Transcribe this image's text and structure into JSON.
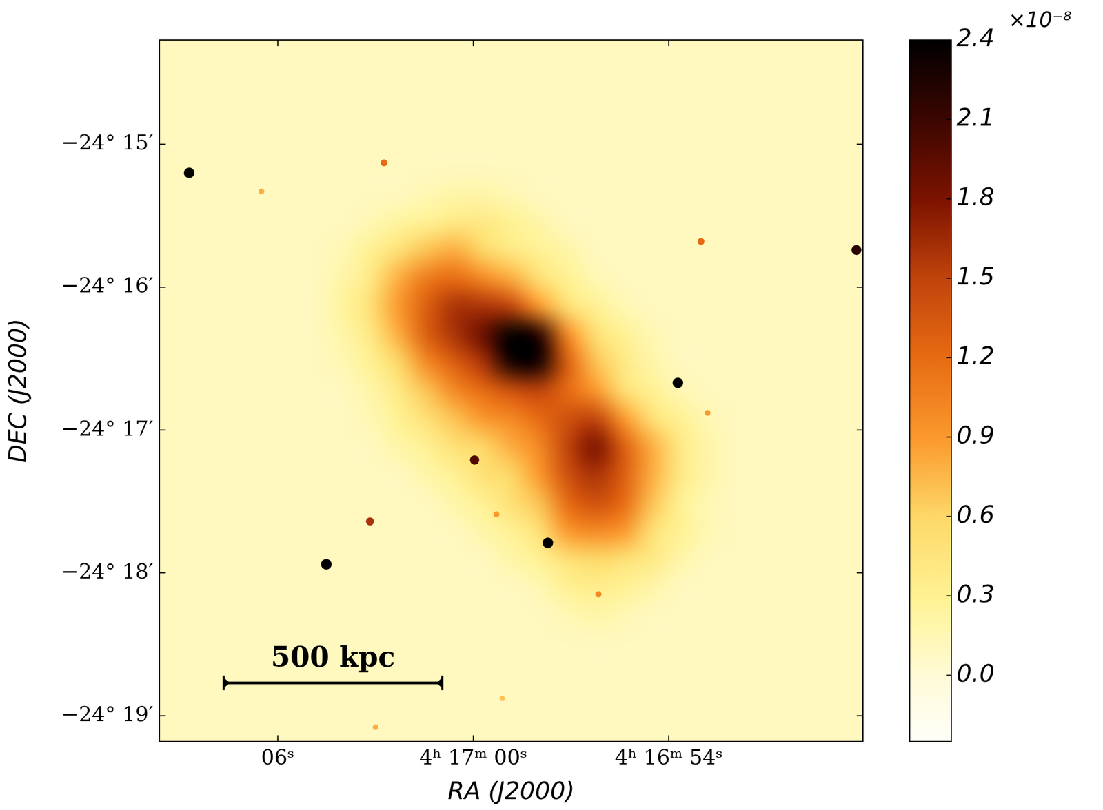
{
  "chart_data": {
    "type": "heatmap",
    "x_label": "RA (J2000)",
    "y_label": "DEC (J2000)",
    "xlim": [
      69.63,
      48.04
    ],
    "ylim": [
      -19.18,
      -14.27
    ],
    "xticks": [
      {
        "value": 66,
        "label": "06ˢ"
      },
      {
        "value": 60,
        "label": "4ʰ 17ᵐ 00ˢ"
      },
      {
        "value": 54,
        "label": "4ʰ 16ᵐ 54ˢ"
      }
    ],
    "yticks": [
      {
        "value": -15,
        "label": "−24° 15′"
      },
      {
        "value": -16,
        "label": "−24° 16′"
      },
      {
        "value": -17,
        "label": "−24° 17′"
      },
      {
        "value": -18,
        "label": "−24° 18′"
      },
      {
        "value": -19,
        "label": "−24° 19′"
      }
    ],
    "grid": false,
    "cells": [
      [
        0.1,
        0.1,
        0.1,
        0.1,
        0.1,
        0.1,
        0.1,
        0.1,
        0.1,
        0.1,
        0.1,
        0.1,
        0.1,
        0.1,
        0.1,
        0.1,
        0.1,
        0.1,
        0.1,
        0.1,
        0.1,
        0.1,
        0.1,
        0.1,
        0.1
      ],
      [
        0.1,
        0.1,
        0.1,
        0.1,
        0.1,
        0.1,
        0.1,
        0.1,
        0.1,
        0.1,
        0.1,
        0.1,
        0.1,
        0.1,
        0.1,
        0.1,
        0.1,
        0.1,
        0.1,
        0.1,
        0.1,
        0.1,
        0.1,
        0.1,
        0.1
      ],
      [
        0.1,
        0.1,
        0.1,
        0.1,
        0.1,
        0.1,
        0.1,
        0.1,
        0.1,
        0.1,
        0.1,
        0.1,
        0.1,
        0.1,
        0.1,
        0.1,
        0.1,
        0.1,
        0.1,
        0.1,
        0.1,
        0.1,
        0.1,
        0.1,
        0.1
      ],
      [
        0.1,
        0.1,
        0.1,
        0.1,
        0.1,
        0.1,
        0.1,
        0.1,
        0.1,
        0.1,
        0.1,
        0.1,
        0.1,
        0.1,
        0.1,
        0.1,
        0.1,
        0.1,
        0.1,
        0.1,
        0.1,
        0.1,
        0.1,
        0.1,
        0.1
      ],
      [
        0.1,
        0.1,
        0.1,
        0.1,
        0.1,
        0.1,
        0.1,
        0.1,
        0.1,
        0.1,
        0.1,
        0.1,
        0.1,
        0.1,
        0.1,
        0.1,
        0.1,
        0.1,
        0.1,
        0.1,
        0.1,
        0.1,
        0.1,
        0.1,
        0.1
      ],
      [
        0.1,
        0.1,
        0.1,
        0.1,
        0.1,
        0.1,
        0.1,
        0.1,
        0.1,
        0.15,
        0.2,
        0.2,
        0.15,
        0.1,
        0.1,
        0.1,
        0.1,
        0.1,
        0.1,
        0.1,
        0.1,
        0.1,
        0.1,
        0.1,
        0.1
      ],
      [
        0.1,
        0.1,
        0.1,
        0.1,
        0.1,
        0.1,
        0.1,
        0.15,
        0.25,
        0.3,
        0.4,
        0.4,
        0.3,
        0.2,
        0.1,
        0.1,
        0.1,
        0.1,
        0.1,
        0.1,
        0.1,
        0.1,
        0.1,
        0.1,
        0.1
      ],
      [
        0.1,
        0.1,
        0.1,
        0.1,
        0.1,
        0.1,
        0.15,
        0.3,
        0.5,
        0.7,
        0.8,
        0.6,
        0.4,
        0.3,
        0.2,
        0.1,
        0.1,
        0.1,
        0.1,
        0.1,
        0.1,
        0.1,
        0.1,
        0.1,
        0.1
      ],
      [
        0.1,
        0.1,
        0.1,
        0.1,
        0.1,
        0.1,
        0.2,
        0.4,
        0.8,
        1.1,
        1.2,
        1.0,
        0.8,
        0.5,
        0.3,
        0.15,
        0.1,
        0.1,
        0.1,
        0.1,
        0.1,
        0.1,
        0.1,
        0.1,
        0.1
      ],
      [
        0.1,
        0.1,
        0.1,
        0.1,
        0.1,
        0.1,
        0.25,
        0.5,
        0.9,
        1.3,
        1.6,
        1.6,
        1.5,
        0.9,
        0.5,
        0.3,
        0.15,
        0.1,
        0.1,
        0.1,
        0.1,
        0.1,
        0.1,
        0.1,
        0.1
      ],
      [
        0.1,
        0.1,
        0.1,
        0.1,
        0.1,
        0.1,
        0.2,
        0.4,
        0.8,
        1.3,
        1.6,
        1.9,
        2.4,
        2.2,
        1.0,
        0.5,
        0.3,
        0.15,
        0.1,
        0.1,
        0.1,
        0.1,
        0.1,
        0.1,
        0.1
      ],
      [
        0.1,
        0.1,
        0.1,
        0.1,
        0.1,
        0.1,
        0.15,
        0.3,
        0.6,
        1.0,
        1.3,
        1.6,
        2.3,
        2.3,
        1.3,
        0.7,
        0.4,
        0.2,
        0.1,
        0.1,
        0.1,
        0.1,
        0.1,
        0.1,
        0.1
      ],
      [
        0.1,
        0.1,
        0.1,
        0.1,
        0.1,
        0.1,
        0.1,
        0.2,
        0.4,
        0.7,
        1.0,
        1.2,
        1.4,
        1.5,
        1.2,
        0.9,
        0.5,
        0.3,
        0.15,
        0.1,
        0.1,
        0.1,
        0.1,
        0.1,
        0.1
      ],
      [
        0.1,
        0.1,
        0.1,
        0.1,
        0.1,
        0.1,
        0.1,
        0.15,
        0.3,
        0.5,
        0.7,
        0.9,
        1.0,
        1.2,
        1.4,
        1.5,
        0.9,
        0.5,
        0.3,
        0.15,
        0.1,
        0.1,
        0.1,
        0.1,
        0.1
      ],
      [
        0.1,
        0.1,
        0.1,
        0.1,
        0.1,
        0.1,
        0.1,
        0.1,
        0.2,
        0.3,
        0.5,
        0.6,
        0.8,
        1.0,
        1.5,
        1.8,
        1.3,
        0.8,
        0.4,
        0.2,
        0.1,
        0.1,
        0.1,
        0.1,
        0.1
      ],
      [
        0.1,
        0.1,
        0.1,
        0.1,
        0.1,
        0.1,
        0.1,
        0.1,
        0.1,
        0.2,
        0.3,
        0.5,
        0.6,
        0.9,
        1.4,
        1.6,
        1.3,
        0.8,
        0.4,
        0.2,
        0.1,
        0.1,
        0.1,
        0.1,
        0.1
      ],
      [
        0.1,
        0.1,
        0.1,
        0.1,
        0.1,
        0.1,
        0.1,
        0.1,
        0.1,
        0.1,
        0.2,
        0.3,
        0.5,
        0.7,
        1.2,
        1.4,
        1.2,
        0.7,
        0.3,
        0.15,
        0.1,
        0.1,
        0.1,
        0.1,
        0.1
      ],
      [
        0.1,
        0.1,
        0.1,
        0.1,
        0.1,
        0.1,
        0.1,
        0.1,
        0.1,
        0.1,
        0.1,
        0.2,
        0.3,
        0.5,
        0.9,
        1.0,
        0.9,
        0.5,
        0.3,
        0.15,
        0.1,
        0.1,
        0.1,
        0.1,
        0.1
      ],
      [
        0.1,
        0.1,
        0.1,
        0.1,
        0.1,
        0.1,
        0.1,
        0.1,
        0.1,
        0.1,
        0.1,
        0.1,
        0.2,
        0.3,
        0.5,
        0.6,
        0.5,
        0.4,
        0.2,
        0.1,
        0.1,
        0.1,
        0.1,
        0.1,
        0.1
      ],
      [
        0.1,
        0.1,
        0.1,
        0.1,
        0.1,
        0.1,
        0.1,
        0.1,
        0.1,
        0.1,
        0.1,
        0.1,
        0.1,
        0.15,
        0.3,
        0.35,
        0.3,
        0.2,
        0.1,
        0.1,
        0.1,
        0.1,
        0.1,
        0.1,
        0.1
      ],
      [
        0.1,
        0.1,
        0.1,
        0.1,
        0.1,
        0.1,
        0.1,
        0.1,
        0.1,
        0.1,
        0.1,
        0.1,
        0.1,
        0.1,
        0.15,
        0.2,
        0.15,
        0.1,
        0.1,
        0.1,
        0.1,
        0.1,
        0.1,
        0.1,
        0.1
      ],
      [
        0.1,
        0.1,
        0.1,
        0.1,
        0.1,
        0.1,
        0.1,
        0.1,
        0.1,
        0.1,
        0.1,
        0.1,
        0.1,
        0.1,
        0.1,
        0.1,
        0.1,
        0.1,
        0.1,
        0.1,
        0.1,
        0.1,
        0.1,
        0.1,
        0.1
      ],
      [
        0.1,
        0.1,
        0.1,
        0.1,
        0.1,
        0.1,
        0.1,
        0.1,
        0.1,
        0.1,
        0.1,
        0.1,
        0.1,
        0.1,
        0.1,
        0.1,
        0.1,
        0.1,
        0.1,
        0.1,
        0.1,
        0.1,
        0.1,
        0.1,
        0.1
      ],
      [
        0.1,
        0.1,
        0.1,
        0.1,
        0.1,
        0.1,
        0.1,
        0.1,
        0.1,
        0.1,
        0.1,
        0.1,
        0.1,
        0.1,
        0.1,
        0.1,
        0.1,
        0.1,
        0.1,
        0.1,
        0.1,
        0.1,
        0.1,
        0.1,
        0.1
      ],
      [
        0.1,
        0.1,
        0.1,
        0.1,
        0.1,
        0.1,
        0.1,
        0.1,
        0.1,
        0.1,
        0.1,
        0.1,
        0.1,
        0.1,
        0.1,
        0.1,
        0.1,
        0.1,
        0.1,
        0.1,
        0.1,
        0.1,
        0.1,
        0.1,
        0.1
      ]
    ],
    "colorbar": {
      "lim": [
        -0.25,
        2.4
      ],
      "ticks": [
        {
          "value": 0,
          "label": "0.0"
        },
        0.3,
        0.6,
        0.9,
        1.2,
        1.5,
        1.8,
        2.1,
        2.4
      ],
      "label": "×10⁻⁸"
    },
    "sources": {
      "x": [
        68.72,
        53.72,
        57.71,
        64.51,
        48.24,
        59.96,
        63.17,
        62.74,
        53.01,
        66.5,
        56.16,
        59.29,
        63.0,
        59.11,
        52.81
      ],
      "y": [
        -15.2,
        -16.67,
        -17.79,
        -17.94,
        -15.74,
        -17.21,
        -17.64,
        -15.13,
        -15.68,
        -15.33,
        -18.15,
        -17.59,
        -19.08,
        -18.88,
        -16.88
      ],
      "values": [
        2.4,
        2.4,
        2.4,
        2.4,
        2.2,
        2.0,
        1.6,
        1.2,
        1.2,
        0.8,
        1.0,
        0.9,
        0.8,
        0.7,
        0.9
      ]
    },
    "annotations": [
      {
        "text": "500 kpc",
        "x": [
          67.66,
          60.95
        ],
        "y": -18.77
      }
    ]
  }
}
